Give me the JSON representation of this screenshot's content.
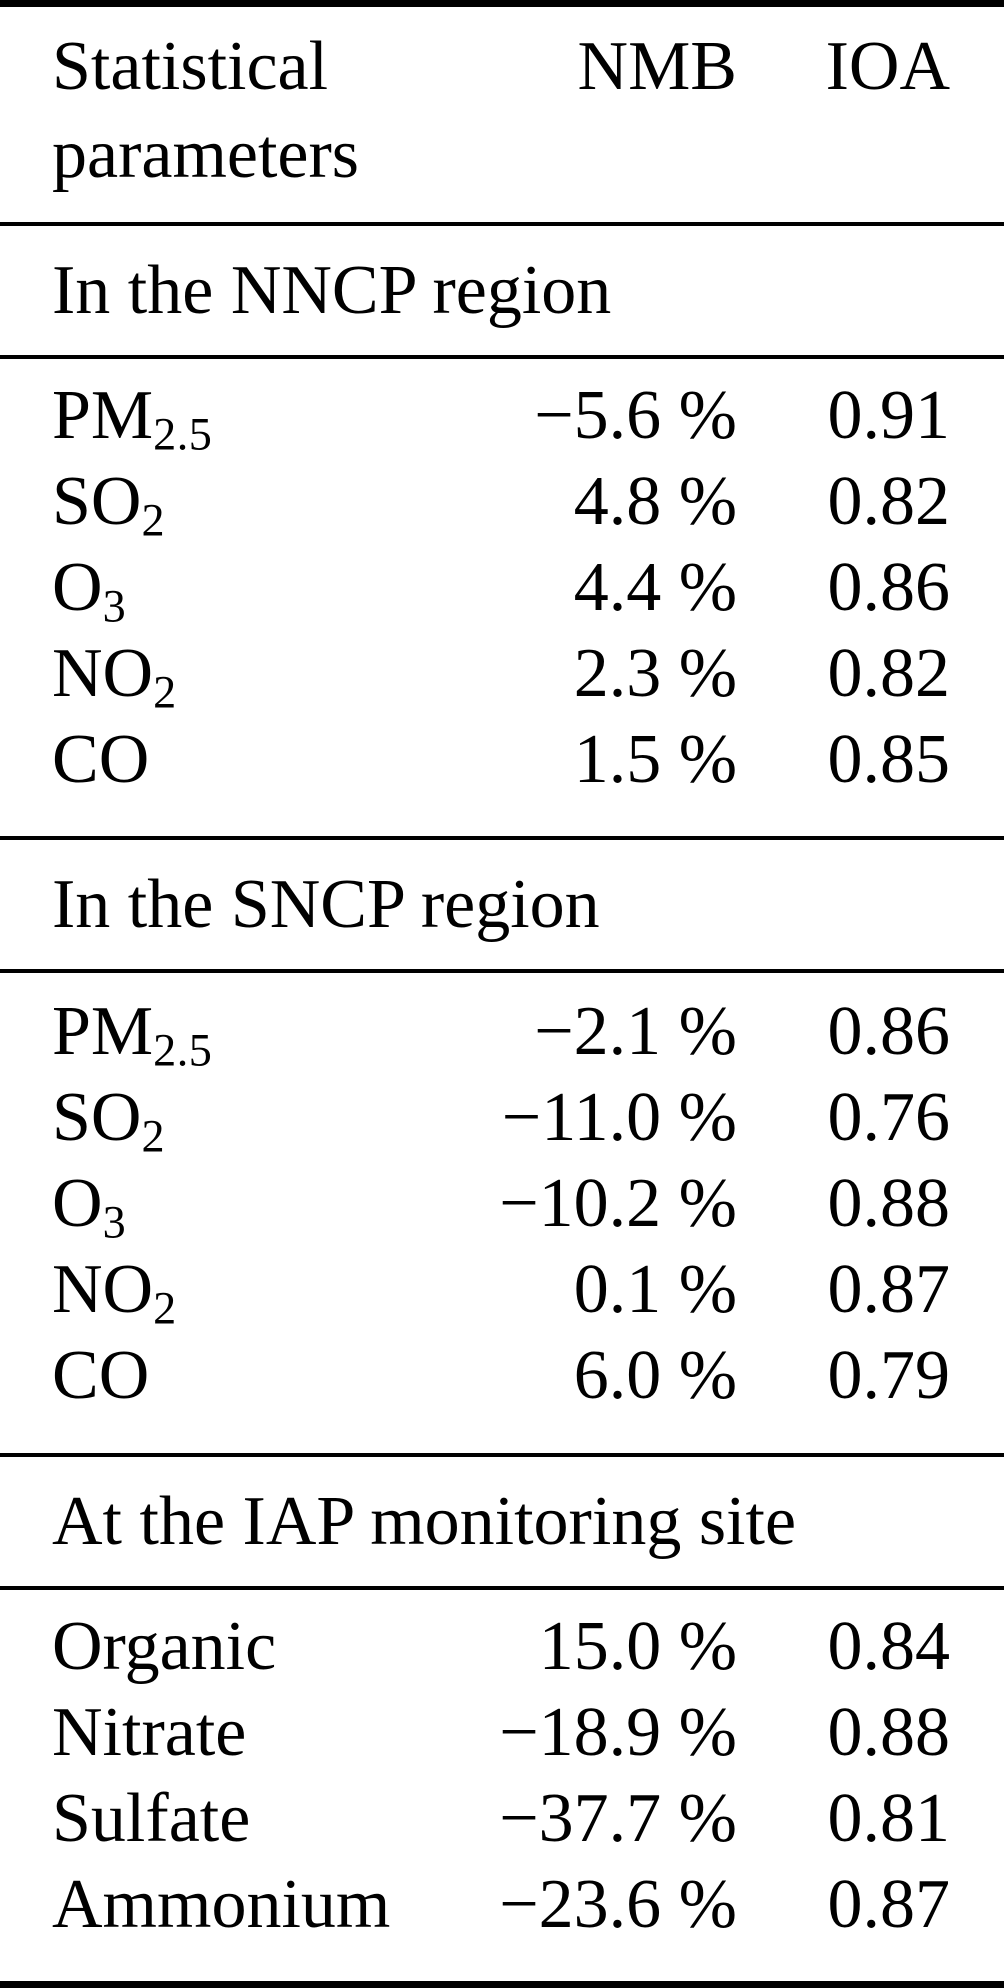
{
  "page": {
    "background_color": "#ffffff",
    "text_color": "#000000"
  },
  "table": {
    "header": {
      "col1_lines": [
        "Statistical",
        "parameters"
      ],
      "col1": "Statistical parameters",
      "col2": "NMB",
      "col3": "IOA"
    },
    "sections": [
      {
        "title": "In the NNCP region",
        "rows": [
          {
            "species_base": "PM",
            "species_sub": "2.5",
            "nmb": "−5.6 %",
            "ioa": "0.91"
          },
          {
            "species_base": "SO",
            "species_sub": "2",
            "nmb": "4.8 %",
            "ioa": "0.82"
          },
          {
            "species_base": "O",
            "species_sub": "3",
            "nmb": "4.4 %",
            "ioa": "0.86"
          },
          {
            "species_base": "NO",
            "species_sub": "2",
            "nmb": "2.3 %",
            "ioa": "0.82"
          },
          {
            "species_base": "CO",
            "species_sub": "",
            "nmb": "1.5 %",
            "ioa": "0.85"
          }
        ]
      },
      {
        "title": "In the SNCP region",
        "rows": [
          {
            "species_base": "PM",
            "species_sub": "2.5",
            "nmb": "−2.1 %",
            "ioa": "0.86"
          },
          {
            "species_base": "SO",
            "species_sub": "2",
            "nmb": "−11.0 %",
            "ioa": "0.76"
          },
          {
            "species_base": "O",
            "species_sub": "3",
            "nmb": "−10.2 %",
            "ioa": "0.88"
          },
          {
            "species_base": "NO",
            "species_sub": "2",
            "nmb": "0.1 %",
            "ioa": "0.87"
          },
          {
            "species_base": "CO",
            "species_sub": "",
            "nmb": "6.0 %",
            "ioa": "0.79"
          }
        ]
      },
      {
        "title": "At the IAP monitoring site",
        "rows": [
          {
            "species_base": "Organic",
            "species_sub": "",
            "nmb": "15.0 %",
            "ioa": "0.84"
          },
          {
            "species_base": "Nitrate",
            "species_sub": "",
            "nmb": "−18.9 %",
            "ioa": "0.88"
          },
          {
            "species_base": "Sulfate",
            "species_sub": "",
            "nmb": "−37.7 %",
            "ioa": "0.81"
          },
          {
            "species_base": "Ammonium",
            "species_sub": "",
            "nmb": "−23.6 %",
            "ioa": "0.87"
          }
        ]
      }
    ]
  }
}
